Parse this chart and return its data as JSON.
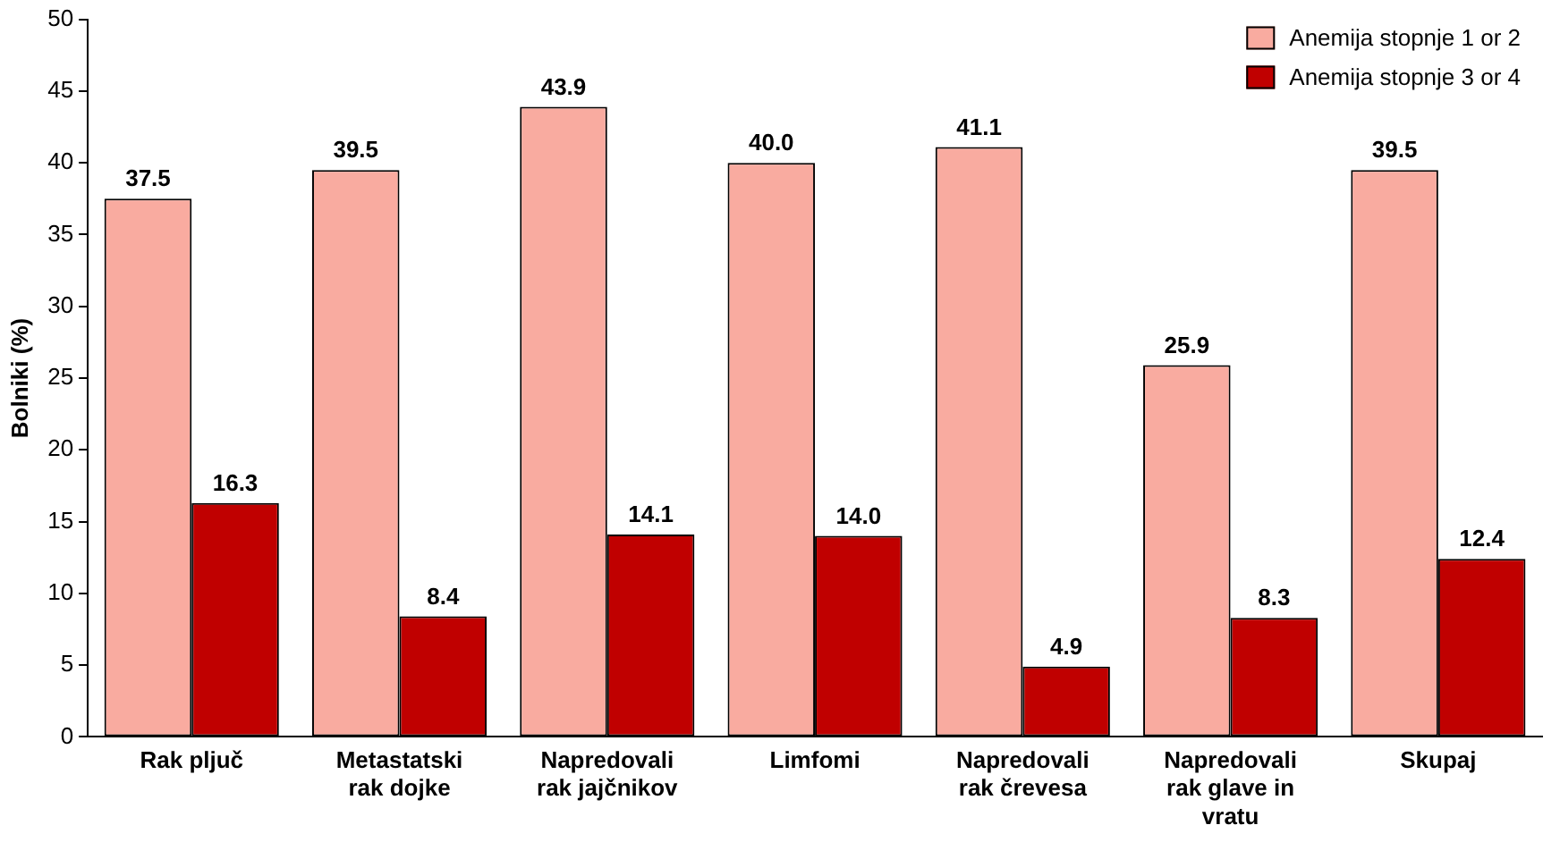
{
  "chart_data": {
    "type": "bar",
    "ylabel": "Bolniki (%)",
    "categories": [
      "Rak pljuč",
      "Metastatski rak dojke",
      "Napredovali rak jajčnikov",
      "Limfomi",
      "Napredovali rak črevesa",
      "Napredovali rak glave in vratu",
      "Skupaj"
    ],
    "series": [
      {
        "name": "Anemija stopnje 1 or 2",
        "color": "#f9aba0",
        "values": [
          37.5,
          39.5,
          43.9,
          40.0,
          41.1,
          25.9,
          39.5
        ],
        "value_labels": [
          "37.5",
          "39.5",
          "43.9",
          "40.0",
          "41.1",
          "25.9",
          "39.5"
        ]
      },
      {
        "name": "Anemija stopnje 3 or 4",
        "color": "#c00000",
        "values": [
          16.3,
          8.4,
          14.1,
          14.0,
          4.9,
          8.3,
          12.4
        ],
        "value_labels": [
          "16.3",
          "8.4",
          "14.1",
          "14.0",
          "4.9",
          "8.3",
          "12.4"
        ]
      }
    ],
    "ylim": [
      0,
      50
    ],
    "yticks": [
      0,
      5,
      10,
      15,
      20,
      25,
      30,
      35,
      40,
      45,
      50
    ],
    "grid": false,
    "legend": "top right"
  }
}
